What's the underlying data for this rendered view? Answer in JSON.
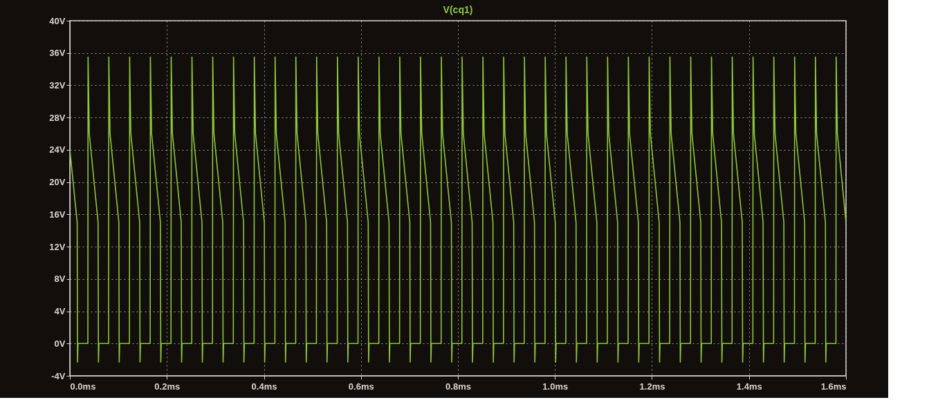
{
  "chart_data": {
    "type": "line",
    "title": "V(cq1)",
    "xlim": [
      0,
      1.6
    ],
    "ylim": [
      -4,
      40
    ],
    "xticks": [
      {
        "value": 0,
        "label": "0.0ms"
      },
      {
        "value": 0.2,
        "label": "0.2ms"
      },
      {
        "value": 0.4,
        "label": "0.4ms"
      },
      {
        "value": 0.6,
        "label": "0.6ms"
      },
      {
        "value": 0.8,
        "label": "0.8ms"
      },
      {
        "value": 1.0,
        "label": "1.0ms"
      },
      {
        "value": 1.2,
        "label": "1.2ms"
      },
      {
        "value": 1.4,
        "label": "1.4ms"
      },
      {
        "value": 1.6,
        "label": "1.6ms"
      }
    ],
    "yticks": [
      {
        "value": -4,
        "label": "-4V"
      },
      {
        "value": 0,
        "label": "0V"
      },
      {
        "value": 4,
        "label": "4V"
      },
      {
        "value": 8,
        "label": "8V"
      },
      {
        "value": 12,
        "label": "12V"
      },
      {
        "value": 16,
        "label": "16V"
      },
      {
        "value": 20,
        "label": "20V"
      },
      {
        "value": 24,
        "label": "24V"
      },
      {
        "value": 28,
        "label": "28V"
      },
      {
        "value": 32,
        "label": "32V"
      },
      {
        "value": 36,
        "label": "36V"
      },
      {
        "value": 40,
        "label": "40V"
      }
    ],
    "grid": true,
    "line_style": "solid",
    "marker": "none",
    "series": [
      {
        "color": "#8cc83c",
        "x": [
          0,
          0.0151,
          0.0158,
          0.0168,
          0.0371,
          0.0375,
          0.04,
          0.0582,
          0.0589,
          0.0599,
          0.0799,
          0.0803,
          0.0828,
          0.101,
          0.1017,
          0.1027,
          0.1228,
          0.1232,
          0.1257,
          0.1439,
          0.1446,
          0.1456,
          0.1656,
          0.166,
          0.1685,
          0.1867,
          0.1874,
          0.1884,
          0.2085,
          0.2089,
          0.2114,
          0.2296,
          0.2303,
          0.2313,
          0.2513,
          0.2517,
          0.2542,
          0.2724,
          0.2731,
          0.2741,
          0.2941,
          0.2945,
          0.297,
          0.3152,
          0.3159,
          0.3169,
          0.337,
          0.3374,
          0.3399,
          0.3581,
          0.3588,
          0.3598,
          0.3798,
          0.3802,
          0.3827,
          0.4009,
          0.4016,
          0.4026,
          0.4227,
          0.4231,
          0.4256,
          0.4438,
          0.4445,
          0.4455,
          0.4655,
          0.4659,
          0.4684,
          0.4866,
          0.4873,
          0.4883,
          0.5083,
          0.5087,
          0.5112,
          0.5294,
          0.5301,
          0.5311,
          0.5512,
          0.5516,
          0.5541,
          0.5723,
          0.573,
          0.574,
          0.594,
          0.5944,
          0.5969,
          0.6151,
          0.6158,
          0.6168,
          0.6369,
          0.6373,
          0.6398,
          0.658,
          0.6587,
          0.6597,
          0.6797,
          0.6801,
          0.6826,
          0.7008,
          0.7015,
          0.7025,
          0.7225,
          0.7229,
          0.7254,
          0.7436,
          0.7443,
          0.7453,
          0.7654,
          0.7658,
          0.7683,
          0.7865,
          0.7872,
          0.7882,
          0.8082,
          0.8086,
          0.8111,
          0.8293,
          0.83,
          0.831,
          0.8511,
          0.8515,
          0.854,
          0.8722,
          0.8729,
          0.8739,
          0.8939,
          0.8943,
          0.8968,
          0.915,
          0.9157,
          0.9167,
          0.9367,
          0.9371,
          0.9396,
          0.9578,
          0.9585,
          0.9595,
          0.9796,
          0.98,
          0.9825,
          1.0007,
          1.0014,
          1.0024,
          1.0224,
          1.0228,
          1.0253,
          1.0435,
          1.0442,
          1.0452,
          1.0653,
          1.0657,
          1.0682,
          1.0864,
          1.0871,
          1.0881,
          1.1081,
          1.1085,
          1.111,
          1.1292,
          1.1299,
          1.1309,
          1.1509,
          1.1513,
          1.1538,
          1.172,
          1.1727,
          1.1737,
          1.1938,
          1.1942,
          1.1967,
          1.2149,
          1.2156,
          1.2166,
          1.2366,
          1.237,
          1.2395,
          1.2577,
          1.2584,
          1.2594,
          1.2795,
          1.2799,
          1.2824,
          1.3006,
          1.3013,
          1.3023,
          1.3223,
          1.3227,
          1.3252,
          1.3434,
          1.3441,
          1.3451,
          1.3651,
          1.3655,
          1.368,
          1.3862,
          1.3869,
          1.3879,
          1.408,
          1.4084,
          1.4109,
          1.4291,
          1.4298,
          1.4308,
          1.4508,
          1.4512,
          1.4537,
          1.4719,
          1.4726,
          1.4736,
          1.4937,
          1.4941,
          1.4966,
          1.5148,
          1.5155,
          1.5165,
          1.5365,
          1.5369,
          1.5394,
          1.5576,
          1.5583,
          1.5593,
          1.5793,
          1.5797,
          1.5822,
          1.6
        ],
        "values": [
          24,
          15,
          -2.3,
          0,
          0,
          35.5,
          26,
          15,
          -2.3,
          0,
          0,
          35.5,
          26,
          15,
          -2.3,
          0,
          0,
          35.5,
          26,
          15,
          -2.3,
          0,
          0,
          35.5,
          26,
          15,
          -2.3,
          0,
          0,
          35.5,
          26,
          15,
          -2.3,
          0,
          0,
          35.5,
          26,
          15,
          -2.3,
          0,
          0,
          35.5,
          26,
          15,
          -2.3,
          0,
          0,
          35.5,
          26,
          15,
          -2.3,
          0,
          0,
          35.5,
          26,
          15,
          -2.3,
          0,
          0,
          35.5,
          26,
          15,
          -2.3,
          0,
          0,
          35.5,
          26,
          15,
          -2.3,
          0,
          0,
          35.5,
          26,
          15,
          -2.3,
          0,
          0,
          35.5,
          26,
          15,
          -2.3,
          0,
          0,
          35.5,
          26,
          15,
          -2.3,
          0,
          0,
          35.5,
          26,
          15,
          -2.3,
          0,
          0,
          35.5,
          26,
          15,
          -2.3,
          0,
          0,
          35.5,
          26,
          15,
          -2.3,
          0,
          0,
          35.5,
          26,
          15,
          -2.3,
          0,
          0,
          35.5,
          26,
          15,
          -2.3,
          0,
          0,
          35.5,
          26,
          15,
          -2.3,
          0,
          0,
          35.5,
          26,
          15,
          -2.3,
          0,
          0,
          35.5,
          26,
          15,
          -2.3,
          0,
          0,
          35.5,
          26,
          15,
          -2.3,
          0,
          0,
          35.5,
          26,
          15,
          -2.3,
          0,
          0,
          35.5,
          26,
          15,
          -2.3,
          0,
          0,
          35.5,
          26,
          15,
          -2.3,
          0,
          0,
          35.5,
          26,
          15,
          -2.3,
          0,
          0,
          35.5,
          26,
          15,
          -2.3,
          0,
          0,
          35.5,
          26,
          15,
          -2.3,
          0,
          0,
          35.5,
          26,
          15,
          -2.3,
          0,
          0,
          35.5,
          26,
          15,
          -2.3,
          0,
          0,
          35.5,
          26,
          15,
          -2.3,
          0,
          0,
          35.5,
          26,
          15,
          -2.3,
          0,
          0,
          35.5,
          26,
          15,
          -2.3,
          0,
          0,
          35.5,
          26,
          15,
          -2.3,
          0,
          0,
          35.5,
          26,
          15,
          -2.3,
          0,
          0,
          35.5,
          26,
          15
        ]
      }
    ]
  }
}
